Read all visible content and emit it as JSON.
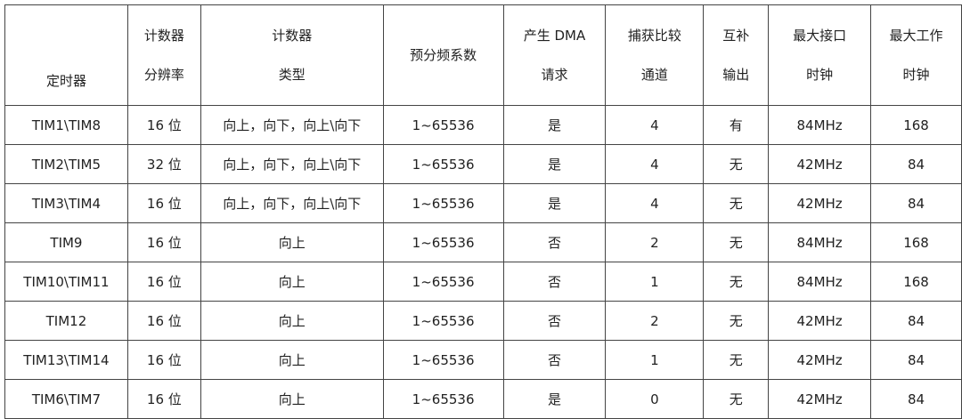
{
  "table": {
    "header": [
      [
        "定时器"
      ],
      [
        "计数器",
        "分辨率"
      ],
      [
        "计数器",
        "类型"
      ],
      [
        "预分频系数"
      ],
      [
        "产生 DMA",
        "请求"
      ],
      [
        "捕获比较",
        "通道"
      ],
      [
        "互补",
        "输出"
      ],
      [
        "最大接口",
        "时钟"
      ],
      [
        "最大工作",
        "时钟"
      ]
    ],
    "rows": [
      [
        "TIM1\\TIM8",
        "16 位",
        "向上，向下，向上\\向下",
        "1~65536",
        "是",
        "4",
        "有",
        "84MHz",
        "168"
      ],
      [
        "TIM2\\TIM5",
        "32 位",
        "向上，向下，向上\\向下",
        "1~65536",
        "是",
        "4",
        "无",
        "42MHz",
        "84"
      ],
      [
        "TIM3\\TIM4",
        "16 位",
        "向上，向下，向上\\向下",
        "1~65536",
        "是",
        "4",
        "无",
        "42MHz",
        "84"
      ],
      [
        "TIM9",
        "16 位",
        "向上",
        "1~65536",
        "否",
        "2",
        "无",
        "84MHz",
        "168"
      ],
      [
        "TIM10\\TIM11",
        "16 位",
        "向上",
        "1~65536",
        "否",
        "1",
        "无",
        "84MHz",
        "168"
      ],
      [
        "TIM12",
        "16 位",
        "向上",
        "1~65536",
        "否",
        "2",
        "无",
        "42MHz",
        "84"
      ],
      [
        "TIM13\\TIM14",
        "16 位",
        "向上",
        "1~65536",
        "否",
        "1",
        "无",
        "42MHz",
        "84"
      ],
      [
        "TIM6\\TIM7",
        "16 位",
        "向上",
        "1~65536",
        "是",
        "0",
        "无",
        "42MHz",
        "84"
      ]
    ]
  }
}
